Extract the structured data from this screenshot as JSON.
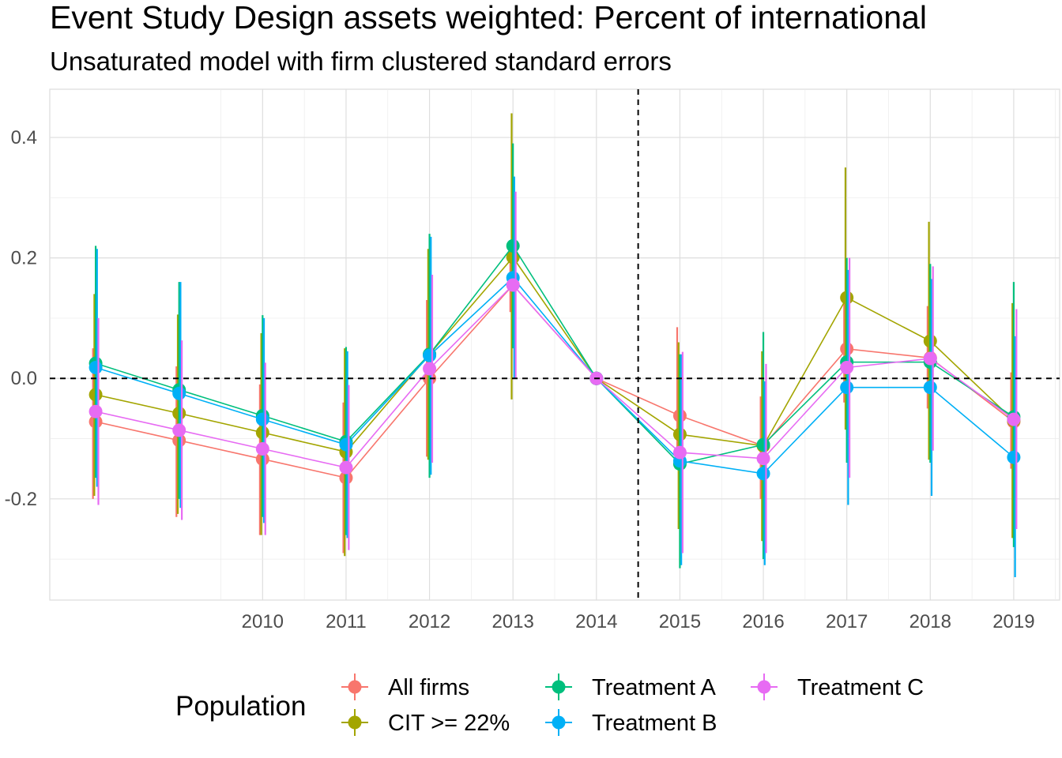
{
  "chart_data": {
    "type": "scatter",
    "title": "Event Study Design assets weighted: Percent of international",
    "subtitle": "Unsaturated model with firm clustered standard errors",
    "xlabel": "",
    "ylabel": "",
    "x": [
      2008,
      2009,
      2010,
      2011,
      2012,
      2013,
      2014,
      2015,
      2016,
      2017,
      2018,
      2019
    ],
    "x_tick_labels": [
      "2010",
      "2011",
      "2012",
      "2013",
      "2014",
      "2015",
      "2016",
      "2017",
      "2018",
      "2019"
    ],
    "x_tick_values": [
      2010,
      2011,
      2012,
      2013,
      2014,
      2015,
      2016,
      2017,
      2018,
      2019
    ],
    "xlim": [
      2007.45,
      2019.55
    ],
    "y_tick_labels": [
      "-0.2",
      "0.0",
      "0.2",
      "0.4"
    ],
    "y_tick_values": [
      -0.2,
      0.0,
      0.2,
      0.4
    ],
    "ylim": [
      -0.368,
      0.48
    ],
    "grid": true,
    "reference_lines": {
      "vertical_x": 2014.5,
      "horizontal_y": 0.0,
      "style": "dashed",
      "color": "#000000"
    },
    "legend": {
      "title": "Population",
      "position": "bottom"
    },
    "series": [
      {
        "name": "All firms",
        "color": "#F8766D",
        "values": [
          -0.072,
          -0.103,
          -0.134,
          -0.165,
          0.0,
          0.155,
          0.0,
          -0.062,
          -0.112,
          0.049,
          0.034,
          -0.072
        ],
        "lower": [
          -0.2,
          -0.23,
          -0.26,
          -0.29,
          -0.13,
          0.11,
          0.0,
          -0.15,
          -0.2,
          -0.04,
          -0.05,
          -0.15
        ],
        "upper": [
          0.05,
          0.02,
          -0.01,
          -0.04,
          0.13,
          0.2,
          0.0,
          0.085,
          -0.03,
          0.14,
          0.12,
          0.01
        ]
      },
      {
        "name": "CIT >= 22%",
        "color": "#A3A500",
        "values": [
          -0.027,
          -0.058,
          -0.09,
          -0.122,
          0.04,
          0.201,
          0.0,
          -0.093,
          -0.112,
          0.134,
          0.062,
          -0.07
        ],
        "lower": [
          -0.195,
          -0.225,
          -0.26,
          -0.295,
          -0.135,
          -0.035,
          0.0,
          -0.25,
          -0.27,
          -0.085,
          -0.135,
          -0.265
        ],
        "upper": [
          0.14,
          0.106,
          0.075,
          0.05,
          0.215,
          0.44,
          0.0,
          0.06,
          0.045,
          0.35,
          0.26,
          0.125
        ]
      },
      {
        "name": "Treatment A",
        "color": "#00BF7D",
        "values": [
          0.025,
          -0.019,
          -0.062,
          -0.105,
          0.04,
          0.22,
          0.0,
          -0.142,
          -0.11,
          0.027,
          0.027,
          -0.064
        ],
        "lower": [
          -0.165,
          -0.2,
          -0.23,
          -0.26,
          -0.165,
          0.05,
          0.0,
          -0.315,
          -0.3,
          -0.14,
          -0.14,
          -0.28
        ],
        "upper": [
          0.22,
          0.16,
          0.105,
          0.052,
          0.24,
          0.39,
          0.0,
          0.04,
          0.077,
          0.2,
          0.19,
          0.16
        ]
      },
      {
        "name": "Treatment B",
        "color": "#00B0F6",
        "values": [
          0.018,
          -0.025,
          -0.068,
          -0.11,
          0.038,
          0.167,
          0.0,
          -0.137,
          -0.158,
          -0.015,
          -0.015,
          -0.131
        ],
        "lower": [
          -0.18,
          -0.215,
          -0.24,
          -0.265,
          -0.16,
          0.0,
          0.0,
          -0.31,
          -0.31,
          -0.21,
          -0.195,
          -0.33
        ],
        "upper": [
          0.215,
          0.16,
          0.1,
          0.045,
          0.235,
          0.335,
          0.0,
          0.04,
          -0.005,
          0.18,
          0.165,
          0.07
        ]
      },
      {
        "name": "Treatment C",
        "color": "#E76BF3",
        "values": [
          -0.055,
          -0.086,
          -0.117,
          -0.148,
          0.016,
          0.155,
          0.0,
          -0.123,
          -0.133,
          0.018,
          0.033,
          -0.068
        ],
        "lower": [
          -0.21,
          -0.235,
          -0.26,
          -0.285,
          -0.14,
          0.0,
          0.0,
          -0.29,
          -0.29,
          -0.165,
          -0.12,
          -0.25
        ],
        "upper": [
          0.1,
          0.063,
          0.026,
          -0.011,
          0.172,
          0.31,
          0.0,
          0.044,
          0.024,
          0.2,
          0.186,
          0.115
        ]
      }
    ]
  }
}
